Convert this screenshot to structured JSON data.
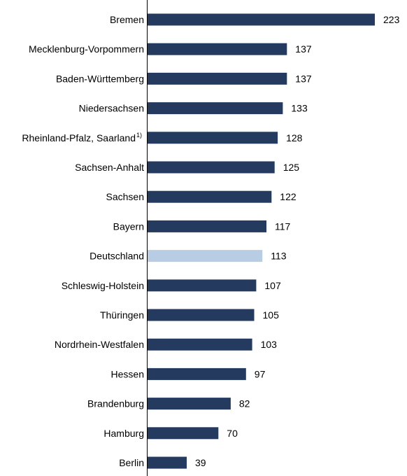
{
  "chart_data": {
    "type": "bar",
    "orientation": "horizontal",
    "categories": [
      "Bremen",
      "Mecklenburg-Vorpommern",
      "Baden-Württemberg",
      "Niedersachsen",
      "Rheinland-Pfalz, Saarland",
      "Sachsen-Anhalt",
      "Sachsen",
      "Bayern",
      "Deutschland",
      "Schleswig-Holstein",
      "Thüringen",
      "Nordrhein-Westfalen",
      "Hessen",
      "Brandenburg",
      "Hamburg",
      "Berlin"
    ],
    "category_footnotes": [
      "",
      "",
      "",
      "",
      "1)",
      "",
      "",
      "",
      "",
      "",
      "",
      "",
      "",
      "",
      "",
      ""
    ],
    "values": [
      223,
      137,
      137,
      133,
      128,
      125,
      122,
      117,
      113,
      107,
      105,
      103,
      97,
      82,
      70,
      39
    ],
    "data_labels": [
      "223",
      "137",
      "137",
      "133",
      "128",
      "125",
      "122",
      "117",
      "113",
      "107",
      "105",
      "103",
      "97",
      "82",
      "70",
      "39"
    ],
    "highlighted_category": "Deutschland",
    "xlim": [
      0,
      223
    ],
    "grid": false,
    "legend": "none",
    "colors": {
      "bar": "#243a5e",
      "highlight": "#b8cde3",
      "axis": "#000000",
      "text": "#000000"
    }
  }
}
